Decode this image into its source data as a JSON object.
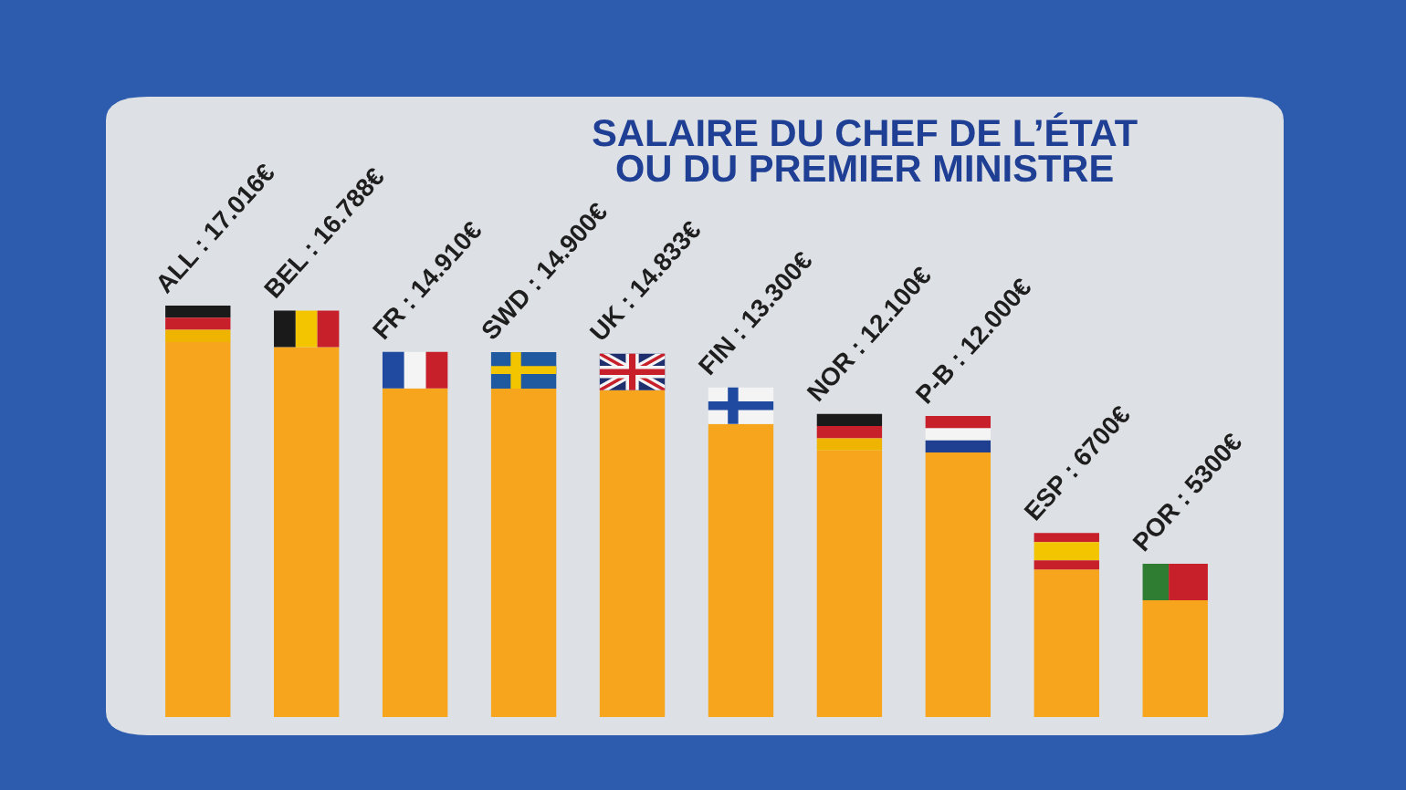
{
  "chart_data": {
    "type": "bar",
    "title": "SALAIRE DU CHEF DE L’ÉTAT\nOU DU PREMIER MINISTRE",
    "categories": [
      null,
      null,
      null,
      null,
      null,
      null,
      null,
      null,
      null,
      null
    ],
    "values": [
      17016,
      16788,
      14910,
      14900,
      14833,
      13300,
      12100,
      12000,
      6700,
      5300
    ],
    "value_labels": [
      "ALL : 17.016€",
      "BEL : 16.788€",
      "FR : 14.910€",
      "SWD : 14.900€",
      "UK : 14.833€",
      "FIN : 13.300€",
      "NOR : 12.100€",
      "P-B : 12.000€",
      "ESP : 6700€",
      "POR : 5300€"
    ],
    "color": "#f7a51c",
    "tick_labels": false
  }
}
